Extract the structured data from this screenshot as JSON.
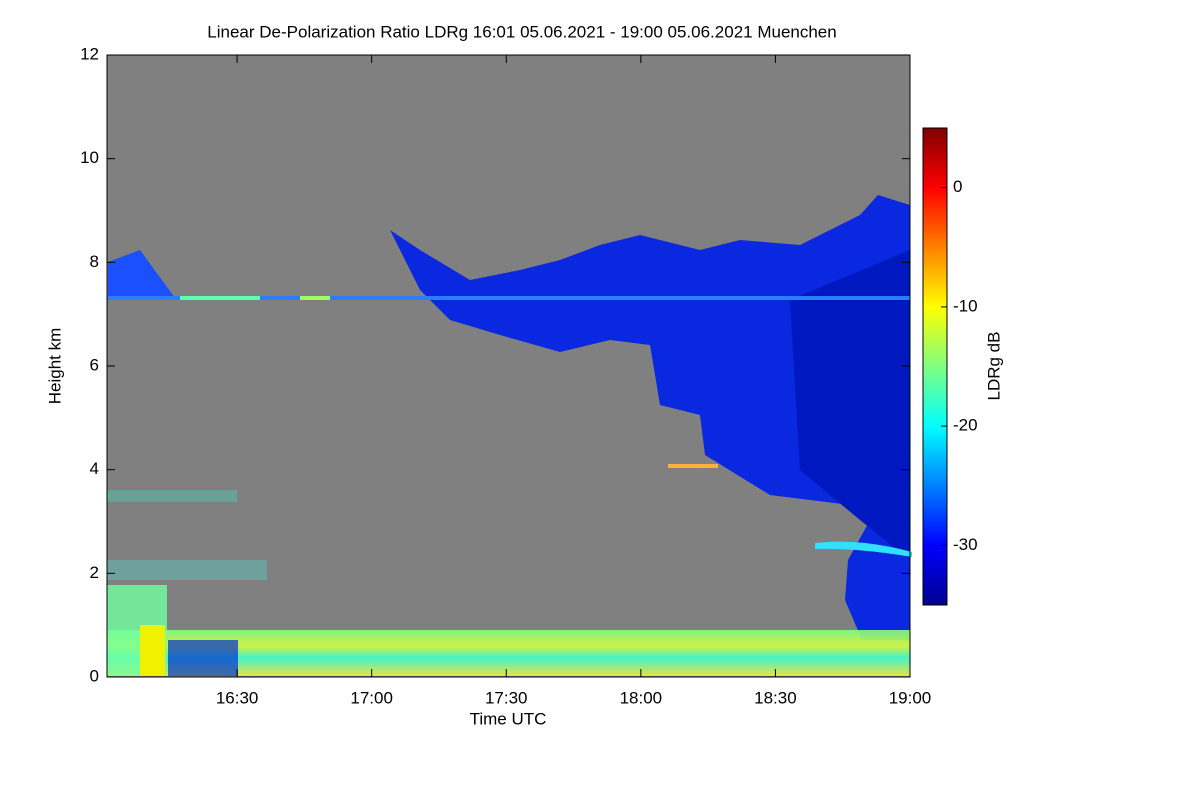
{
  "chart_data": {
    "type": "heatmap",
    "title": "Linear De-Polarization Ratio LDRg   16:01 05.06.2021 - 19:00 05.06.2021 Muenchen",
    "xlabel": "Time UTC",
    "ylabel": "Height km",
    "xlim": [
      961,
      1140
    ],
    "xticks": [
      {
        "value": 990,
        "label": "16:30"
      },
      {
        "value": 1020,
        "label": "17:00"
      },
      {
        "value": 1050,
        "label": "17:30"
      },
      {
        "value": 1080,
        "label": "18:00"
      },
      {
        "value": 1110,
        "label": "18:30"
      },
      {
        "value": 1140,
        "label": "19:00"
      }
    ],
    "ylim": [
      0,
      12
    ],
    "yticks": [
      0,
      2,
      4,
      6,
      8,
      10,
      12
    ],
    "colorbar": {
      "label": "LDRg dB",
      "zlim": [
        -35,
        5
      ],
      "ticks": [
        0,
        -10,
        -20,
        -30
      ],
      "colormap": [
        "#00008f",
        "#0000ff",
        "#0080ff",
        "#00ffff",
        "#80ff80",
        "#ffff00",
        "#ff8000",
        "#ff0000",
        "#800000"
      ]
    }
  }
}
